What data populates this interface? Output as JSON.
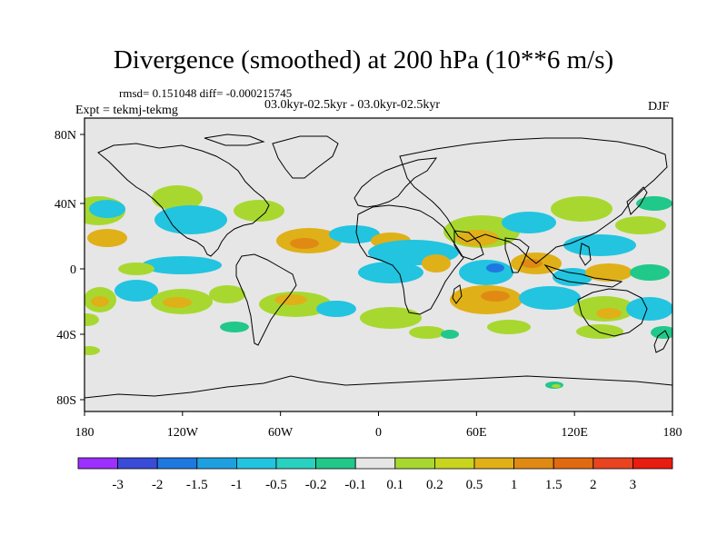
{
  "title": "Divergence (smoothed) at 200 hPa (10**6 m/s)",
  "stats": "rmsd= 0.151048 diff= -0.000215745",
  "period": "03.0kyr-02.5kyr - 03.0kyr-02.5kyr",
  "experiment": "Expt = tekmj-tekmg",
  "season": "DJF",
  "axes": {
    "lat_labels": [
      "80N",
      "40N",
      "0",
      "40S",
      "80S"
    ],
    "lon_labels": [
      "180",
      "120W",
      "60W",
      "0",
      "60E",
      "120E",
      "180"
    ]
  },
  "colorbar": {
    "labels": [
      "-3",
      "-2",
      "-1.5",
      "-1",
      "-0.5",
      "-0.2",
      "-0.1",
      "0.1",
      "0.2",
      "0.5",
      "1",
      "1.5",
      "2",
      "3"
    ],
    "colors": [
      "#9b30ff",
      "#3a4bd8",
      "#1e78e0",
      "#1ea0e0",
      "#22c4e0",
      "#2ad0c0",
      "#20c88a",
      "#e6e6e6",
      "#a8d830",
      "#c8d420",
      "#e0b018",
      "#e08a14",
      "#e06a10",
      "#e84420",
      "#e81c10"
    ]
  },
  "colors": {
    "background": "#e6e6e6",
    "coast": "#000000",
    "positive_weak": "#a8d830",
    "positive_mid": "#e0b018",
    "positive_strong": "#e08a14",
    "negative_weak": "#20c88a",
    "negative_mid": "#22c4e0",
    "negative_strong": "#1e78e0"
  }
}
